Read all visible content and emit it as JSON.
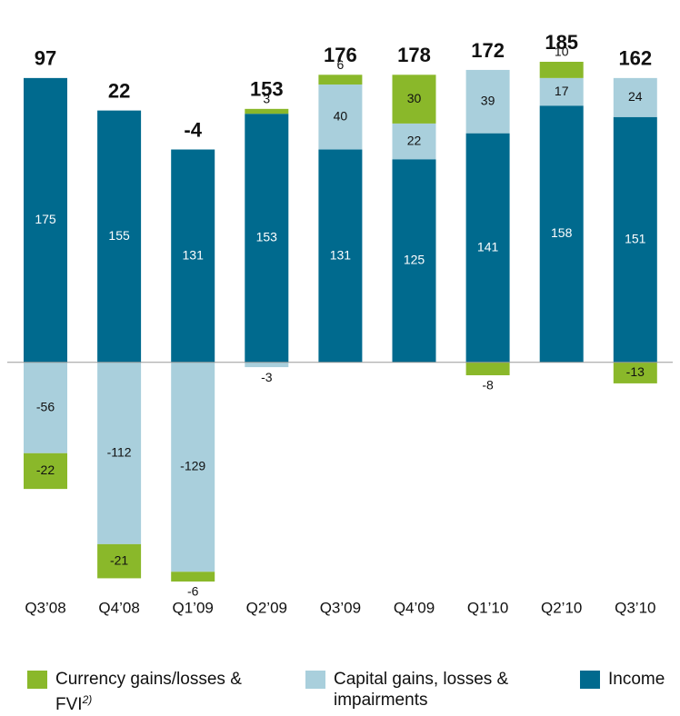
{
  "chart_data": {
    "type": "bar",
    "stacked": true,
    "categories": [
      "Q3’08",
      "Q4’08",
      "Q1’09",
      "Q2’09",
      "Q3’09",
      "Q4’09",
      "Q1’10",
      "Q2’10",
      "Q3’10"
    ],
    "series": [
      {
        "name": "Income",
        "color": "#006a8e",
        "label_color": "#ffffff",
        "values": [
          175,
          155,
          131,
          153,
          131,
          125,
          141,
          158,
          151
        ]
      },
      {
        "name": "Capital gains, losses & impairments",
        "color": "#a9cfdc",
        "label_color": "#111111",
        "values": [
          -56,
          -112,
          -129,
          -3,
          40,
          22,
          39,
          17,
          24
        ]
      },
      {
        "name": "Currency gains/losses & FVI",
        "name_note": "2)",
        "color": "#8ab82a",
        "label_color": "#111111",
        "values": [
          -22,
          -21,
          -6,
          3,
          6,
          30,
          -8,
          10,
          -13
        ]
      }
    ],
    "totals": [
      97,
      22,
      -4,
      153,
      176,
      178,
      172,
      185,
      162
    ],
    "legend_order": [
      2,
      1,
      0
    ]
  }
}
